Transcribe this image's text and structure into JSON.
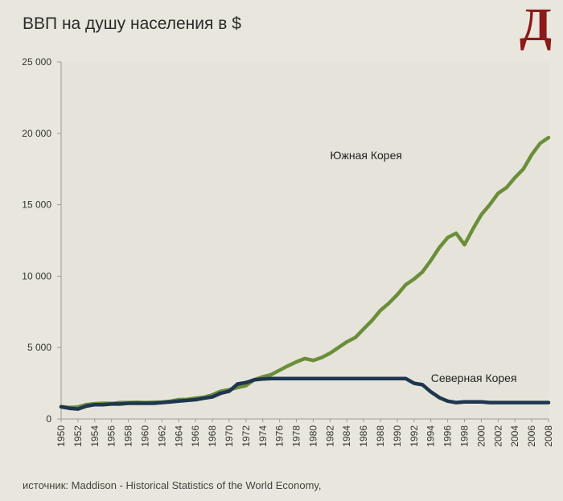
{
  "title": "ВВП на душу населения в $",
  "logo_text": "Д",
  "source": "источник: Maddison - Historical Statistics of the World Economy,",
  "chart_data": {
    "type": "line",
    "title": "ВВП на душу населения в $",
    "xlabel": "",
    "ylabel": "",
    "xlim": [
      1950,
      2008
    ],
    "ylim": [
      0,
      25000
    ],
    "y_ticks": [
      0,
      5000,
      10000,
      15000,
      20000,
      25000
    ],
    "y_tick_labels": [
      "0",
      "5 000",
      "10 000",
      "15 000",
      "20 000",
      "25 000"
    ],
    "x_ticks": [
      1950,
      1952,
      1954,
      1956,
      1958,
      1960,
      1962,
      1964,
      1966,
      1968,
      1970,
      1972,
      1974,
      1976,
      1978,
      1980,
      1982,
      1984,
      1986,
      1988,
      1990,
      1992,
      1994,
      1996,
      1998,
      2000,
      2002,
      2004,
      2006,
      2008
    ],
    "grid": false,
    "x": [
      1950,
      1951,
      1952,
      1953,
      1954,
      1955,
      1956,
      1957,
      1958,
      1959,
      1960,
      1961,
      1962,
      1963,
      1964,
      1965,
      1966,
      1967,
      1968,
      1969,
      1970,
      1971,
      1972,
      1973,
      1974,
      1975,
      1976,
      1977,
      1978,
      1979,
      1980,
      1981,
      1982,
      1983,
      1984,
      1985,
      1986,
      1987,
      1988,
      1989,
      1990,
      1991,
      1992,
      1993,
      1994,
      1995,
      1996,
      1997,
      1998,
      1999,
      2000,
      2001,
      2002,
      2003,
      2004,
      2005,
      2006,
      2007,
      2008
    ],
    "series": [
      {
        "name": "Южная Корея",
        "color": "#6b8e3a",
        "label_year": 1982,
        "label_value": 18200,
        "values": [
          854,
          800,
          840,
          1000,
          1070,
          1100,
          1080,
          1150,
          1150,
          1170,
          1150,
          1170,
          1180,
          1240,
          1350,
          1370,
          1460,
          1520,
          1690,
          1940,
          2050,
          2200,
          2340,
          2750,
          2950,
          3100,
          3420,
          3720,
          4000,
          4230,
          4100,
          4300,
          4600,
          5000,
          5400,
          5700,
          6300,
          6900,
          7600,
          8100,
          8700,
          9400,
          9800,
          10300,
          11100,
          12000,
          12700,
          13000,
          12200,
          13300,
          14300,
          15000,
          15800,
          16200,
          16900,
          17500,
          18500,
          19300,
          19700
        ]
      },
      {
        "name": "Северная Корея",
        "color": "#1e3650",
        "label_year": 1994,
        "label_value": 2600,
        "values": [
          850,
          750,
          700,
          900,
          1000,
          1000,
          1050,
          1050,
          1100,
          1100,
          1100,
          1100,
          1150,
          1200,
          1250,
          1300,
          1350,
          1450,
          1550,
          1800,
          1950,
          2450,
          2550,
          2750,
          2800,
          2830,
          2830,
          2830,
          2830,
          2830,
          2830,
          2830,
          2830,
          2830,
          2830,
          2830,
          2830,
          2830,
          2830,
          2830,
          2830,
          2830,
          2500,
          2400,
          1900,
          1500,
          1250,
          1150,
          1200,
          1200,
          1200,
          1150,
          1150,
          1150,
          1150,
          1150,
          1150,
          1150,
          1150
        ]
      }
    ]
  }
}
